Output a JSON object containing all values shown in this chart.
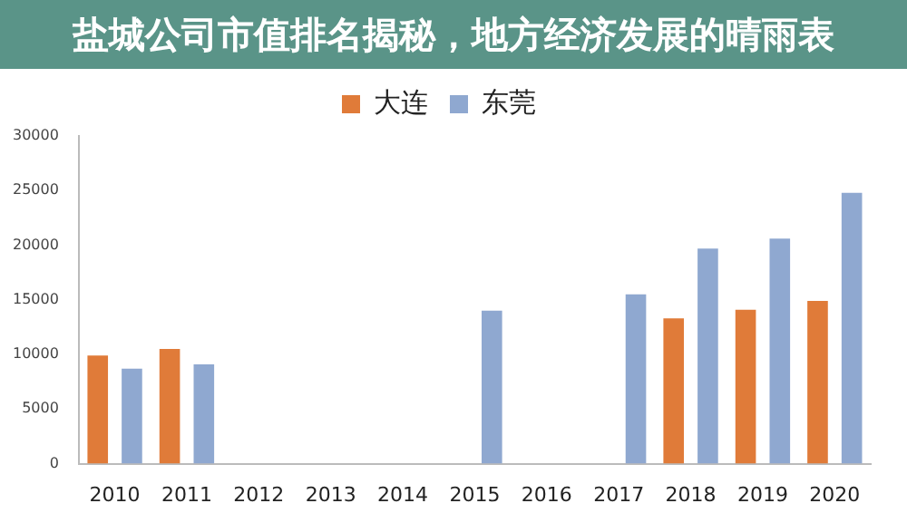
{
  "chart_data": {
    "type": "bar",
    "title": "盐城公司市值排名揭秘，地方经济发展的晴雨表",
    "categories": [
      "2010",
      "2011",
      "2012",
      "2013",
      "2014",
      "2015",
      "2016",
      "2017",
      "2018",
      "2019",
      "2020"
    ],
    "series": [
      {
        "name": "大连",
        "color": "#e07b39",
        "values": [
          9900,
          10500,
          null,
          null,
          null,
          null,
          null,
          null,
          13300,
          14100,
          14900
        ]
      },
      {
        "name": "东莞",
        "color": "#8fa8d0",
        "values": [
          8700,
          9100,
          null,
          null,
          null,
          14000,
          null,
          15500,
          19700,
          20600,
          24800
        ]
      }
    ],
    "ylim": [
      0,
      30000
    ],
    "yticks": [
      0,
      5000,
      10000,
      15000,
      20000,
      25000,
      30000
    ],
    "grid": false,
    "legend": "top"
  }
}
